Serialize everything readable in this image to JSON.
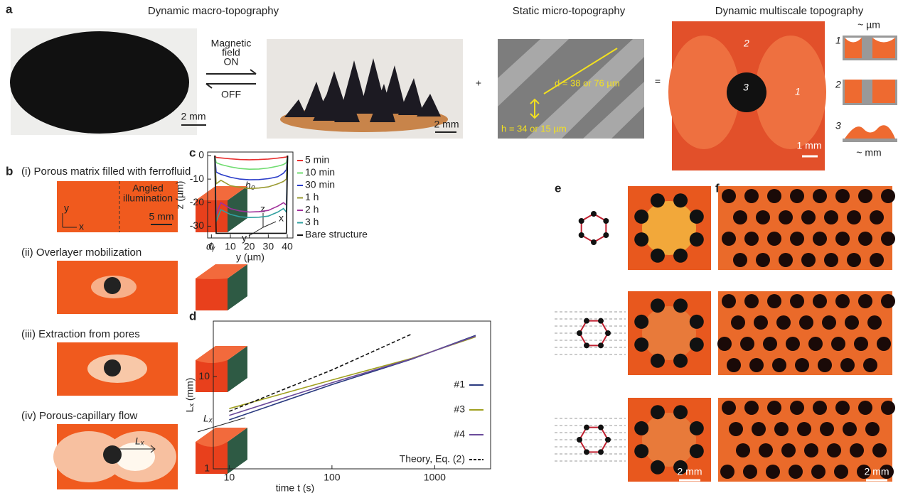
{
  "panels": {
    "a": {
      "letter": "a",
      "macro_title": "Dynamic macro-topography",
      "micro_title": "Static micro-topography",
      "multi_title": "Dynamic multiscale topography",
      "field_label": [
        "Magnetic",
        "field",
        "ON"
      ],
      "off_label": "OFF",
      "scale_1": "2 mm",
      "scale_2": "2 mm",
      "plus": "+",
      "equals": "=",
      "d_label": "d = 38 or 76 µm",
      "h_label": "h = 34 or 15 µm",
      "scale_3": "1 mm",
      "region_1": "1",
      "region_2": "2",
      "region_3": "3",
      "schematic_labels": [
        "1",
        "2",
        "3"
      ],
      "um_label": "~ µm",
      "mm_label": "~ mm"
    },
    "b": {
      "letter": "b",
      "steps": [
        "(i) Porous matrix filled with ferrofluid",
        "(ii) Overlayer mobilization",
        "(iii) Extraction from pores",
        "(iv) Porous-capillary flow"
      ],
      "illumination": [
        "Angled",
        "illumination"
      ],
      "scale": "5 mm",
      "axis_y": "y",
      "axis_x": "x",
      "h0": "h₀",
      "dy": "dᵧ",
      "axes3d": [
        "z",
        "y",
        "x"
      ],
      "lx": "Lₓ",
      "lx_bar": "Lₓ"
    },
    "e": {
      "letter": "e",
      "scale": "2 mm"
    },
    "f": {
      "letter": "f",
      "scale": "2 mm"
    }
  },
  "chart_data": [
    {
      "type": "line",
      "letter": "c",
      "xlabel": "y (µm)",
      "ylabel": "z (µm)",
      "xlim": [
        -2,
        43
      ],
      "ylim": [
        -35,
        1.5
      ],
      "xticks": [
        0,
        10,
        20,
        30,
        40
      ],
      "yticks": [
        0,
        -10,
        -20,
        -30
      ],
      "x": [
        1.8,
        2.5,
        5,
        10,
        15,
        20,
        25,
        30,
        35,
        38,
        39.5,
        40.2
      ],
      "series": [
        {
          "name": "5 min",
          "color": "#e83030",
          "values": [
            0,
            -0.8,
            -1,
            -1.4,
            -1.7,
            -1.8,
            -1.7,
            -1.5,
            -1.1,
            -0.8,
            -0.6,
            0
          ]
        },
        {
          "name": "10 min",
          "color": "#6fdc6f",
          "values": [
            0,
            -3,
            -3.8,
            -4.8,
            -5.5,
            -5.8,
            -5.7,
            -5.3,
            -4.5,
            -3.8,
            -3,
            0
          ]
        },
        {
          "name": "30 min",
          "color": "#2a3cc8",
          "values": [
            0,
            -7,
            -8,
            -9.2,
            -10,
            -10.3,
            -10.2,
            -9.8,
            -9,
            -7.5,
            -6,
            0
          ]
        },
        {
          "name": "1 h",
          "color": "#9a9a30",
          "values": [
            0,
            -12,
            -10.5,
            -12.8,
            -13.5,
            -14,
            -13.8,
            -13.3,
            -12,
            -11,
            -10,
            0
          ]
        },
        {
          "name": "2 h",
          "color": "#a0309a",
          "values": [
            0,
            -25,
            -20,
            -22.5,
            -23.5,
            -24,
            -23.8,
            -23.3,
            -21.5,
            -20,
            -21,
            0
          ]
        },
        {
          "name": "3 h",
          "color": "#30a0a0",
          "values": [
            0,
            -28,
            -23,
            -25,
            -26,
            -26.3,
            -26.2,
            -25.7,
            -24,
            -22.5,
            -24,
            0
          ]
        },
        {
          "name": "Bare structure",
          "color": "#111111",
          "values": [
            0,
            -33,
            -33,
            -33,
            -33,
            -33,
            -33,
            -33,
            -33,
            -33,
            -33,
            0
          ]
        }
      ]
    },
    {
      "type": "line",
      "letter": "d",
      "log": true,
      "xlabel": "time t (s)",
      "ylabel": "Lₓ (mm)",
      "xlim": [
        7,
        3500
      ],
      "ylim": [
        1,
        40
      ],
      "xticks": [
        10,
        100,
        1000
      ],
      "yticks": [
        1,
        10
      ],
      "x": [
        10,
        100,
        600,
        2500
      ],
      "series": [
        {
          "name": "#1",
          "color": "#2a3a80",
          "values": [
            3.4,
            8.2,
            15.5,
            28
          ]
        },
        {
          "name": "#3",
          "color": "#a0a020",
          "values": [
            4.5,
            9.2,
            15.8,
            27
          ]
        },
        {
          "name": "#4",
          "color": "#6a4a9a",
          "values": [
            3.8,
            8.6,
            15.6,
            27.5
          ]
        },
        {
          "name": "Theory, Eq. (2)",
          "color": "#111111",
          "style": "dashed",
          "values": [
            4.2,
            11.8,
            29,
            null
          ]
        }
      ]
    }
  ]
}
